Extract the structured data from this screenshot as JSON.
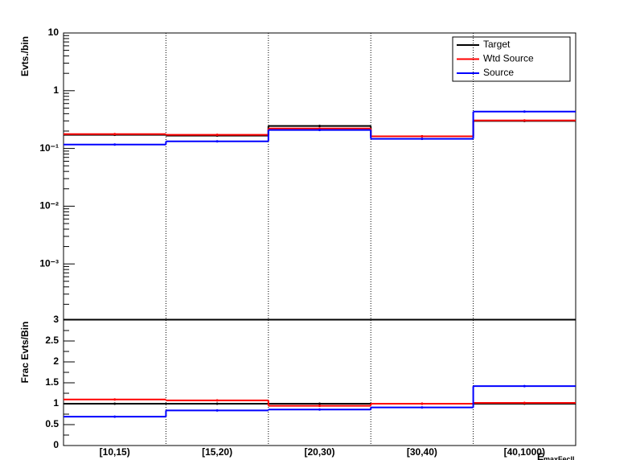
{
  "chart_data": [
    {
      "type": "step",
      "y_label": "Evts./bin",
      "log_y": true,
      "ylim": [
        0.00011,
        10
      ],
      "yticks": [
        {
          "value": 10,
          "label": "10"
        },
        {
          "value": 1,
          "label": "1"
        },
        {
          "value": 0.1,
          "label": "10⁻¹"
        },
        {
          "value": 0.01,
          "label": "10⁻²"
        },
        {
          "value": 0.001,
          "label": "10⁻³"
        }
      ],
      "legend": "top-right",
      "series": [
        {
          "name": "Target",
          "color": "#000000",
          "values": [
            0.172,
            0.167,
            0.245,
            0.162,
            0.3
          ]
        },
        {
          "name": "Wtd Source",
          "color": "#ff0000",
          "values": [
            0.177,
            0.172,
            0.222,
            0.162,
            0.306
          ]
        },
        {
          "name": "Source",
          "color": "#0000ff",
          "values": [
            0.117,
            0.133,
            0.209,
            0.147,
            0.435
          ]
        }
      ]
    },
    {
      "type": "step",
      "y_label": "Frac Evts/Bin",
      "x_label": "E",
      "x_label_sub": "maxFecll",
      "categories": [
        "[10,15)",
        "[15,20)",
        "[20,30)",
        "[30,40)",
        "[40,1000)"
      ],
      "ylim": [
        0,
        3
      ],
      "yticks": [
        0,
        0.5,
        1,
        1.5,
        2,
        2.5,
        3
      ],
      "series": [
        {
          "name": "Target",
          "color": "#000000",
          "values": [
            1,
            1,
            1,
            1,
            1
          ]
        },
        {
          "name": "Wtd Source",
          "color": "#ff0000",
          "values": [
            1.1,
            1.08,
            0.95,
            1.0,
            1.02
          ]
        },
        {
          "name": "Source",
          "color": "#0000ff",
          "values": [
            0.69,
            0.84,
            0.86,
            0.91,
            1.42
          ]
        }
      ]
    }
  ]
}
